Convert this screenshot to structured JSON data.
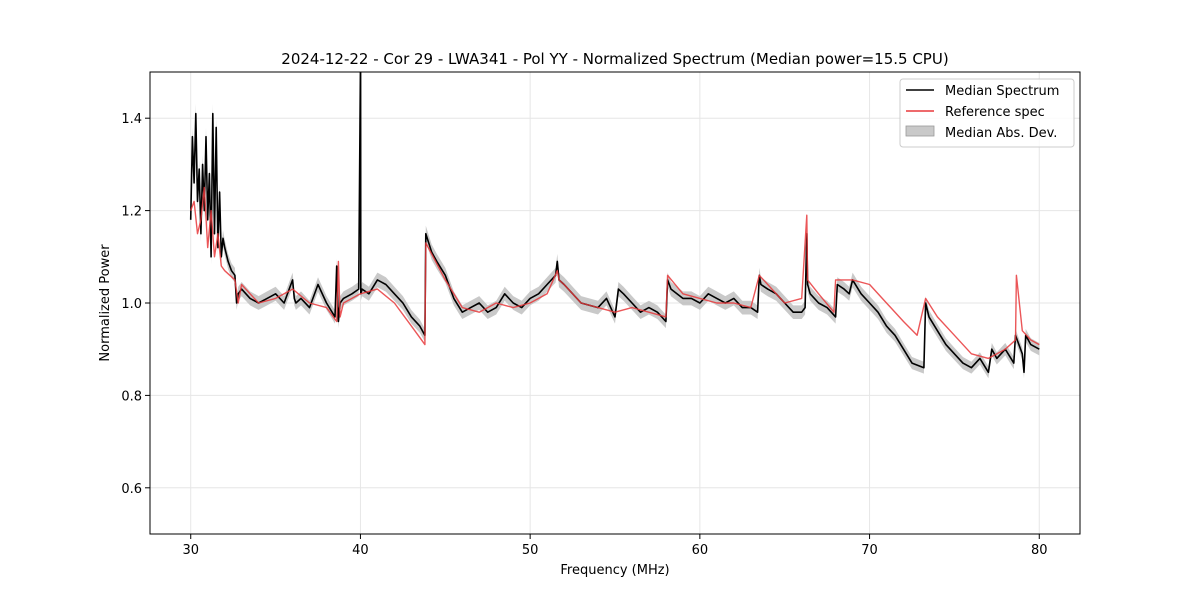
{
  "chart_data": {
    "type": "line",
    "title": "2024-12-22 - Cor 29 - LWA341 - Pol YY - Normalized Spectrum (Median power=15.5 CPU)",
    "xlabel": "Frequency (MHz)",
    "ylabel": "Normalized Power",
    "xlim": [
      27.6,
      82.4
    ],
    "ylim": [
      0.5,
      1.5
    ],
    "xticks": [
      30,
      40,
      50,
      60,
      70,
      80
    ],
    "yticks": [
      0.6,
      0.8,
      1.0,
      1.2,
      1.4
    ],
    "grid": true,
    "legend_position": "top-right",
    "legend": [
      "Median Spectrum",
      "Reference spec",
      "Median Abs. Dev."
    ],
    "colors": {
      "median": "#000000",
      "reference": "#e8383b",
      "mad": "#bbbbbb",
      "grid": "#e6e6e6"
    },
    "series": [
      {
        "name": "Median Spectrum",
        "x": [
          30.0,
          30.1,
          30.2,
          30.3,
          30.4,
          30.5,
          30.6,
          30.7,
          30.8,
          30.9,
          31.0,
          31.1,
          31.2,
          31.3,
          31.4,
          31.5,
          31.6,
          31.7,
          31.8,
          31.9,
          32.0,
          32.2,
          32.4,
          32.6,
          32.7,
          32.8,
          33.0,
          33.5,
          34.0,
          34.5,
          35.0,
          35.5,
          36.0,
          36.1,
          36.2,
          36.5,
          37.0,
          37.5,
          38.0,
          38.5,
          38.6,
          38.7,
          38.8,
          39.0,
          39.5,
          39.9,
          40.0,
          40.01,
          40.02,
          40.1,
          40.5,
          41.0,
          41.5,
          42.0,
          42.5,
          43.0,
          43.5,
          43.8,
          43.85,
          44.2,
          44.5,
          45.0,
          45.5,
          46.0,
          46.5,
          47.0,
          47.5,
          48.0,
          48.5,
          49.0,
          49.5,
          50.0,
          50.5,
          51.0,
          51.5,
          51.6,
          51.7,
          52.0,
          53.0,
          54.0,
          54.5,
          55.0,
          55.2,
          55.5,
          56.0,
          56.5,
          57.0,
          57.5,
          58.0,
          58.1,
          58.3,
          59.0,
          59.5,
          60.0,
          60.5,
          61.0,
          61.5,
          62.0,
          62.5,
          63.0,
          63.4,
          63.5,
          63.6,
          64.0,
          64.5,
          65.0,
          65.5,
          66.0,
          66.2,
          66.3,
          66.35,
          66.5,
          67.0,
          67.5,
          68.0,
          68.1,
          68.5,
          68.8,
          69.0,
          69.5,
          70.0,
          70.5,
          71.0,
          71.5,
          72.0,
          72.5,
          73.2,
          73.3,
          73.5,
          74.0,
          74.5,
          75.0,
          75.5,
          76.0,
          76.5,
          77.0,
          77.2,
          77.5,
          78.0,
          78.5,
          78.6,
          78.7,
          79.0,
          79.1,
          79.2,
          79.5,
          80.0
        ],
        "values": [
          1.18,
          1.36,
          1.26,
          1.41,
          1.22,
          1.29,
          1.15,
          1.3,
          1.2,
          1.36,
          1.18,
          1.28,
          1.1,
          1.41,
          1.15,
          1.38,
          1.12,
          1.24,
          1.1,
          1.14,
          1.12,
          1.09,
          1.07,
          1.06,
          1.0,
          1.02,
          1.03,
          1.01,
          1.0,
          1.01,
          1.02,
          1.0,
          1.05,
          1.01,
          1.0,
          1.01,
          0.99,
          1.04,
          1.0,
          0.97,
          1.08,
          0.96,
          1.0,
          1.01,
          1.02,
          1.03,
          1.5,
          1.5,
          1.02,
          1.03,
          1.02,
          1.05,
          1.04,
          1.02,
          1.0,
          0.97,
          0.95,
          0.93,
          1.15,
          1.11,
          1.09,
          1.06,
          1.01,
          0.98,
          0.99,
          1.0,
          0.98,
          0.99,
          1.02,
          1.0,
          0.99,
          1.01,
          1.02,
          1.04,
          1.06,
          1.09,
          1.05,
          1.04,
          1.0,
          0.99,
          1.01,
          0.97,
          1.03,
          1.02,
          1.0,
          0.98,
          0.99,
          0.98,
          0.96,
          1.05,
          1.03,
          1.01,
          1.01,
          1.0,
          1.02,
          1.01,
          1.0,
          1.01,
          0.99,
          0.99,
          0.98,
          1.06,
          1.04,
          1.03,
          1.02,
          1.0,
          0.98,
          0.98,
          0.99,
          1.15,
          1.04,
          1.02,
          1.0,
          0.99,
          0.97,
          1.04,
          1.03,
          1.02,
          1.05,
          1.02,
          1.0,
          0.98,
          0.95,
          0.93,
          0.9,
          0.87,
          0.86,
          1.0,
          0.97,
          0.94,
          0.91,
          0.89,
          0.87,
          0.86,
          0.88,
          0.85,
          0.9,
          0.88,
          0.9,
          0.87,
          0.93,
          0.92,
          0.89,
          0.85,
          0.93,
          0.91,
          0.9
        ]
      },
      {
        "name": "Reference spec",
        "x": [
          30.0,
          30.2,
          30.4,
          30.6,
          30.8,
          31.0,
          31.2,
          31.4,
          31.6,
          31.8,
          32.0,
          32.3,
          32.6,
          32.8,
          33.0,
          33.5,
          34.0,
          35.0,
          36.0,
          37.0,
          38.0,
          38.6,
          38.7,
          38.8,
          39.0,
          40.0,
          41.0,
          42.0,
          43.0,
          43.8,
          43.85,
          45.0,
          46.0,
          47.0,
          48.0,
          49.0,
          50.0,
          51.0,
          51.6,
          51.7,
          52.0,
          53.0,
          54.0,
          55.0,
          56.0,
          57.0,
          58.0,
          58.1,
          59.0,
          60.0,
          61.0,
          62.0,
          63.0,
          63.5,
          64.0,
          65.0,
          66.0,
          66.3,
          66.35,
          67.0,
          67.9,
          68.0,
          69.0,
          70.0,
          71.0,
          72.0,
          72.8,
          73.3,
          74.0,
          75.0,
          76.0,
          77.0,
          78.0,
          78.6,
          78.65,
          79.0,
          79.5,
          80.0
        ],
        "values": [
          1.2,
          1.22,
          1.15,
          1.18,
          1.25,
          1.12,
          1.2,
          1.1,
          1.15,
          1.08,
          1.07,
          1.06,
          1.05,
          1.0,
          1.04,
          1.02,
          1.0,
          1.01,
          1.03,
          1.0,
          0.99,
          0.96,
          1.09,
          0.97,
          1.0,
          1.02,
          1.03,
          1.0,
          0.95,
          0.91,
          1.13,
          1.05,
          0.99,
          0.98,
          1.0,
          0.99,
          1.0,
          1.02,
          1.07,
          1.05,
          1.04,
          1.0,
          0.99,
          0.98,
          0.99,
          0.98,
          0.97,
          1.06,
          1.02,
          1.01,
          1.0,
          1.0,
          0.99,
          1.06,
          1.04,
          1.0,
          1.01,
          1.19,
          1.05,
          1.02,
          0.98,
          1.05,
          1.05,
          1.04,
          1.0,
          0.96,
          0.93,
          1.01,
          0.97,
          0.93,
          0.89,
          0.88,
          0.9,
          0.92,
          1.06,
          0.94,
          0.92,
          0.91
        ]
      }
    ]
  }
}
